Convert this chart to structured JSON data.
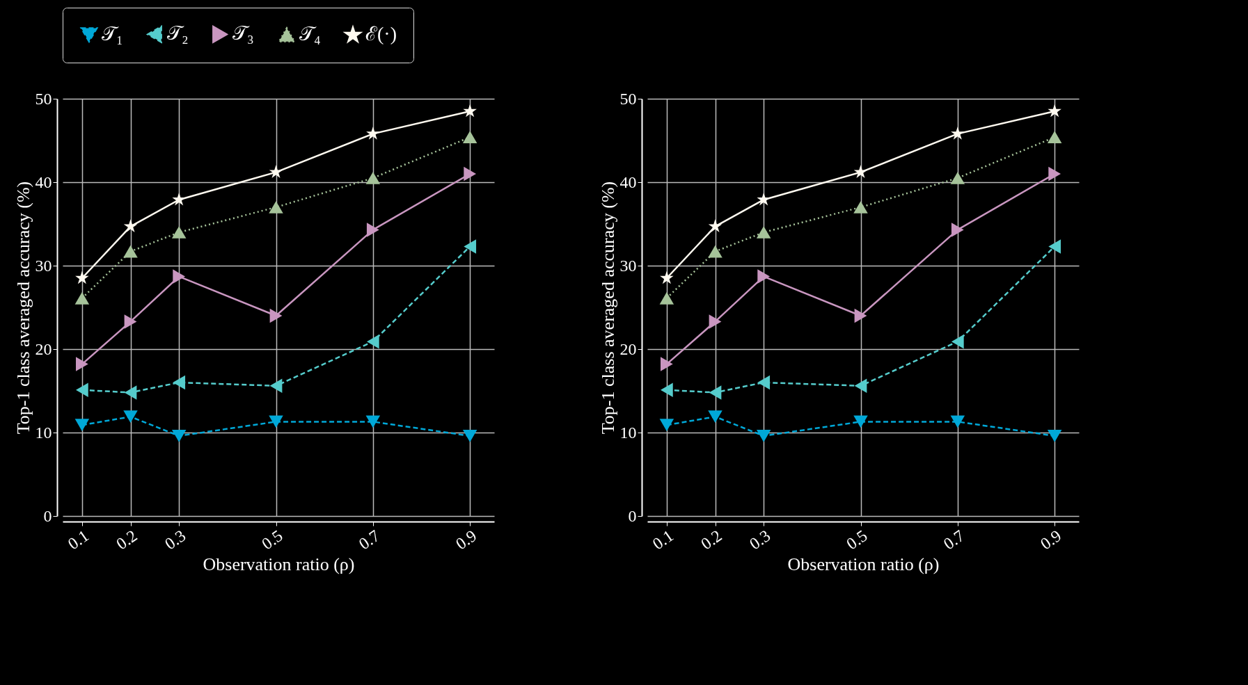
{
  "chart_data": [
    {
      "type": "line",
      "xlabel": "Observation ratio (ρ)",
      "ylabel": "Top-1 class averaged accuracy (%)",
      "x": [
        0.1,
        0.2,
        0.3,
        0.5,
        0.7,
        0.9
      ],
      "xlim": [
        0.06,
        0.95
      ],
      "xticks": [
        0.1,
        0.2,
        0.3,
        0.5,
        0.7,
        0.9
      ],
      "ylim": [
        0,
        50
      ],
      "yticks": [
        0,
        10,
        20,
        30,
        40,
        50
      ],
      "grid": true,
      "legend": "top",
      "series": [
        {
          "name": "𝒯₁",
          "color": "#00a8d8",
          "marker": "triangle-down",
          "line_style": "dashed",
          "values": [
            10.9,
            11.9,
            9.6,
            11.3,
            11.3,
            9.6
          ]
        },
        {
          "name": "𝒯₂",
          "color": "#55cccc",
          "marker": "triangle-left",
          "line_style": "dashed",
          "values": [
            15.1,
            14.8,
            16.0,
            15.6,
            20.9,
            32.3
          ]
        },
        {
          "name": "𝒯₃",
          "color": "#c996c0",
          "marker": "triangle-right",
          "line_style": "solid",
          "values": [
            18.2,
            23.3,
            28.7,
            24.0,
            34.3,
            41.0
          ]
        },
        {
          "name": "𝒯₄",
          "color": "#a6c39a",
          "marker": "triangle-up",
          "line_style": "dotted",
          "values": [
            26.1,
            31.7,
            34.0,
            37.0,
            40.5,
            45.4
          ]
        },
        {
          "name": "ℰ(·)",
          "color": "#fffaf0",
          "marker": "star",
          "line_style": "solid",
          "values": [
            28.5,
            34.7,
            37.9,
            41.2,
            45.8,
            48.5
          ]
        }
      ]
    },
    {
      "type": "line",
      "xlabel": "Observation ratio (ρ)",
      "ylabel": "Top-1 class averaged accuracy (%)",
      "x": [
        0.1,
        0.2,
        0.3,
        0.5,
        0.7,
        0.9
      ],
      "xlim": [
        0.06,
        0.95
      ],
      "xticks": [
        0.1,
        0.2,
        0.3,
        0.5,
        0.7,
        0.9
      ],
      "ylim": [
        0,
        50
      ],
      "yticks": [
        0,
        10,
        20,
        30,
        40,
        50
      ],
      "grid": true,
      "legend": "top",
      "series": [
        {
          "name": "𝒯₁",
          "color": "#00a8d8",
          "marker": "triangle-down",
          "line_style": "dashed",
          "values": [
            10.9,
            11.9,
            9.6,
            11.3,
            11.3,
            9.6
          ]
        },
        {
          "name": "𝒯₂",
          "color": "#55cccc",
          "marker": "triangle-left",
          "line_style": "dashed",
          "values": [
            15.1,
            14.8,
            16.0,
            15.6,
            20.9,
            32.3
          ]
        },
        {
          "name": "𝒯₃",
          "color": "#c996c0",
          "marker": "triangle-right",
          "line_style": "solid",
          "values": [
            18.2,
            23.3,
            28.7,
            24.0,
            34.3,
            41.0
          ]
        },
        {
          "name": "𝒯₄",
          "color": "#a6c39a",
          "marker": "triangle-up",
          "line_style": "dotted",
          "values": [
            26.1,
            31.7,
            34.0,
            37.0,
            40.5,
            45.4
          ]
        },
        {
          "name": "ℰ(·)",
          "color": "#fffaf0",
          "marker": "star",
          "line_style": "solid",
          "values": [
            28.5,
            34.7,
            37.9,
            41.2,
            45.8,
            48.5
          ]
        }
      ]
    }
  ]
}
